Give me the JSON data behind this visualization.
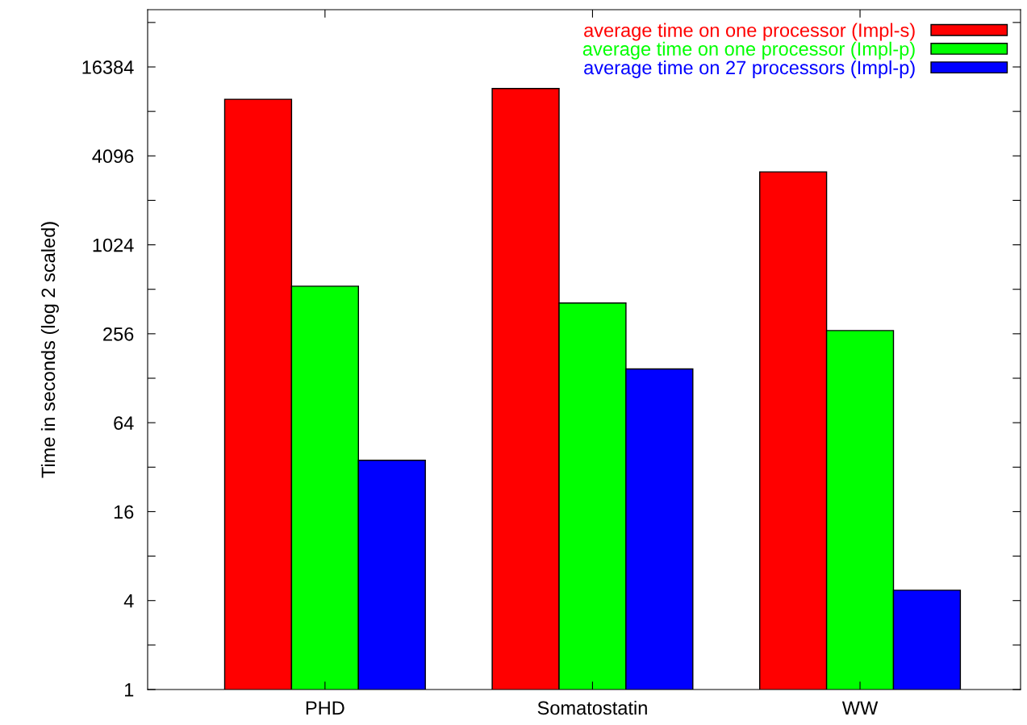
{
  "chart_data": {
    "type": "bar",
    "ylabel": "Time in seconds (log 2 scaled)",
    "categories": [
      "PHD",
      "Somatostatin",
      "WW"
    ],
    "series": [
      {
        "name": "average time on one processor (Impl-s)",
        "color": "#ff0000",
        "values": [
          9900,
          11700,
          3190
        ]
      },
      {
        "name": "average time on one processor (Impl-p)",
        "color": "#00ff00",
        "values": [
          537,
          413,
          269
        ]
      },
      {
        "name": "average time on 27 processors (Impl-p)",
        "color": "#0000ff",
        "values": [
          35.6,
          148,
          4.7
        ]
      }
    ],
    "log": "y",
    "ylim": [
      1,
      40000
    ],
    "yticks": [
      1,
      {
        "value": 2,
        "label": null
      },
      4,
      {
        "value": 8,
        "label": null
      },
      16,
      {
        "value": 32,
        "label": null
      },
      64,
      {
        "value": 128,
        "label": null
      },
      256,
      {
        "value": 512,
        "label": null
      },
      1024,
      {
        "value": 2048,
        "label": null
      },
      4096,
      {
        "value": 8192,
        "label": null
      },
      16384,
      {
        "value": 32768,
        "label": null
      }
    ],
    "grid": false,
    "legend": "top right"
  }
}
